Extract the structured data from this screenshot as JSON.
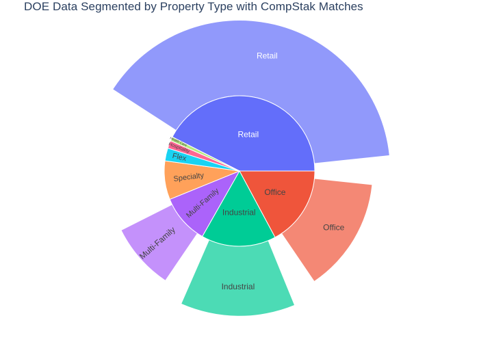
{
  "title": "DOE Data Segmented by Property Type with CompStak Matches",
  "chart_data": {
    "type": "pie",
    "title": "DOE Data Segmented by Property Type with CompStak Matches",
    "inner_pie": {
      "description": "DOE data share by property type",
      "slices": [
        {
          "label": "Retail",
          "value": 38.4,
          "color": "#636efa"
        },
        {
          "label": "Office",
          "value": 15.5,
          "color": "#ef553b"
        },
        {
          "label": "Industrial",
          "value": 14.5,
          "color": "#00cc96"
        },
        {
          "label": "Multi-Family",
          "value": 9.6,
          "color": "#ab63fa"
        },
        {
          "label": "Specialty",
          "value": 7.5,
          "color": "#ffa15a"
        },
        {
          "label": "Flex",
          "value": 2.5,
          "color": "#19d3f3"
        },
        {
          "label": "Hospitality",
          "value": 1.5,
          "color": "#ff6692"
        },
        {
          "label": "Health Care",
          "value": 0.8,
          "color": "#b6e880"
        }
      ]
    },
    "outer_wedges": {
      "description": "CompStak matches by property type",
      "slices": [
        {
          "label": "Retail",
          "value": 1.0,
          "color": "#636efa"
        },
        {
          "label": "Office",
          "value": 0.66,
          "color": "#ef553b"
        },
        {
          "label": "Industrial",
          "value": 0.89,
          "color": "#00cc96"
        },
        {
          "label": "Multi-Family",
          "value": 0.64,
          "color": "#ab63fa"
        }
      ]
    }
  }
}
